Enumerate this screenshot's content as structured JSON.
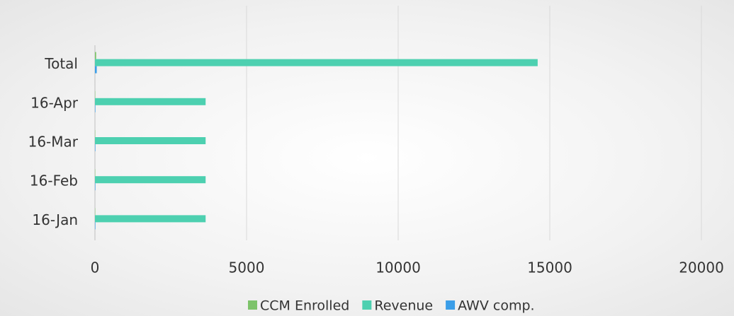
{
  "chart_data": {
    "type": "hbar",
    "categories": [
      "16-Jan",
      "16-Feb",
      "16-Mar",
      "16-Apr",
      "Total"
    ],
    "series": [
      {
        "name": "CCM Enrolled",
        "color": "#7dc36a",
        "values": [
          10,
          10,
          10,
          10,
          40
        ]
      },
      {
        "name": "Revenue",
        "color": "#4dd0b0",
        "values": [
          3650,
          3650,
          3650,
          3650,
          14600
        ]
      },
      {
        "name": "AWV comp.",
        "color": "#3b9ee8",
        "values": [
          15,
          15,
          15,
          15,
          60
        ]
      }
    ],
    "xlim": [
      0,
      20000
    ],
    "xticks": [
      0,
      5000,
      10000,
      15000,
      20000
    ],
    "grid": true,
    "legend": "bottom"
  }
}
